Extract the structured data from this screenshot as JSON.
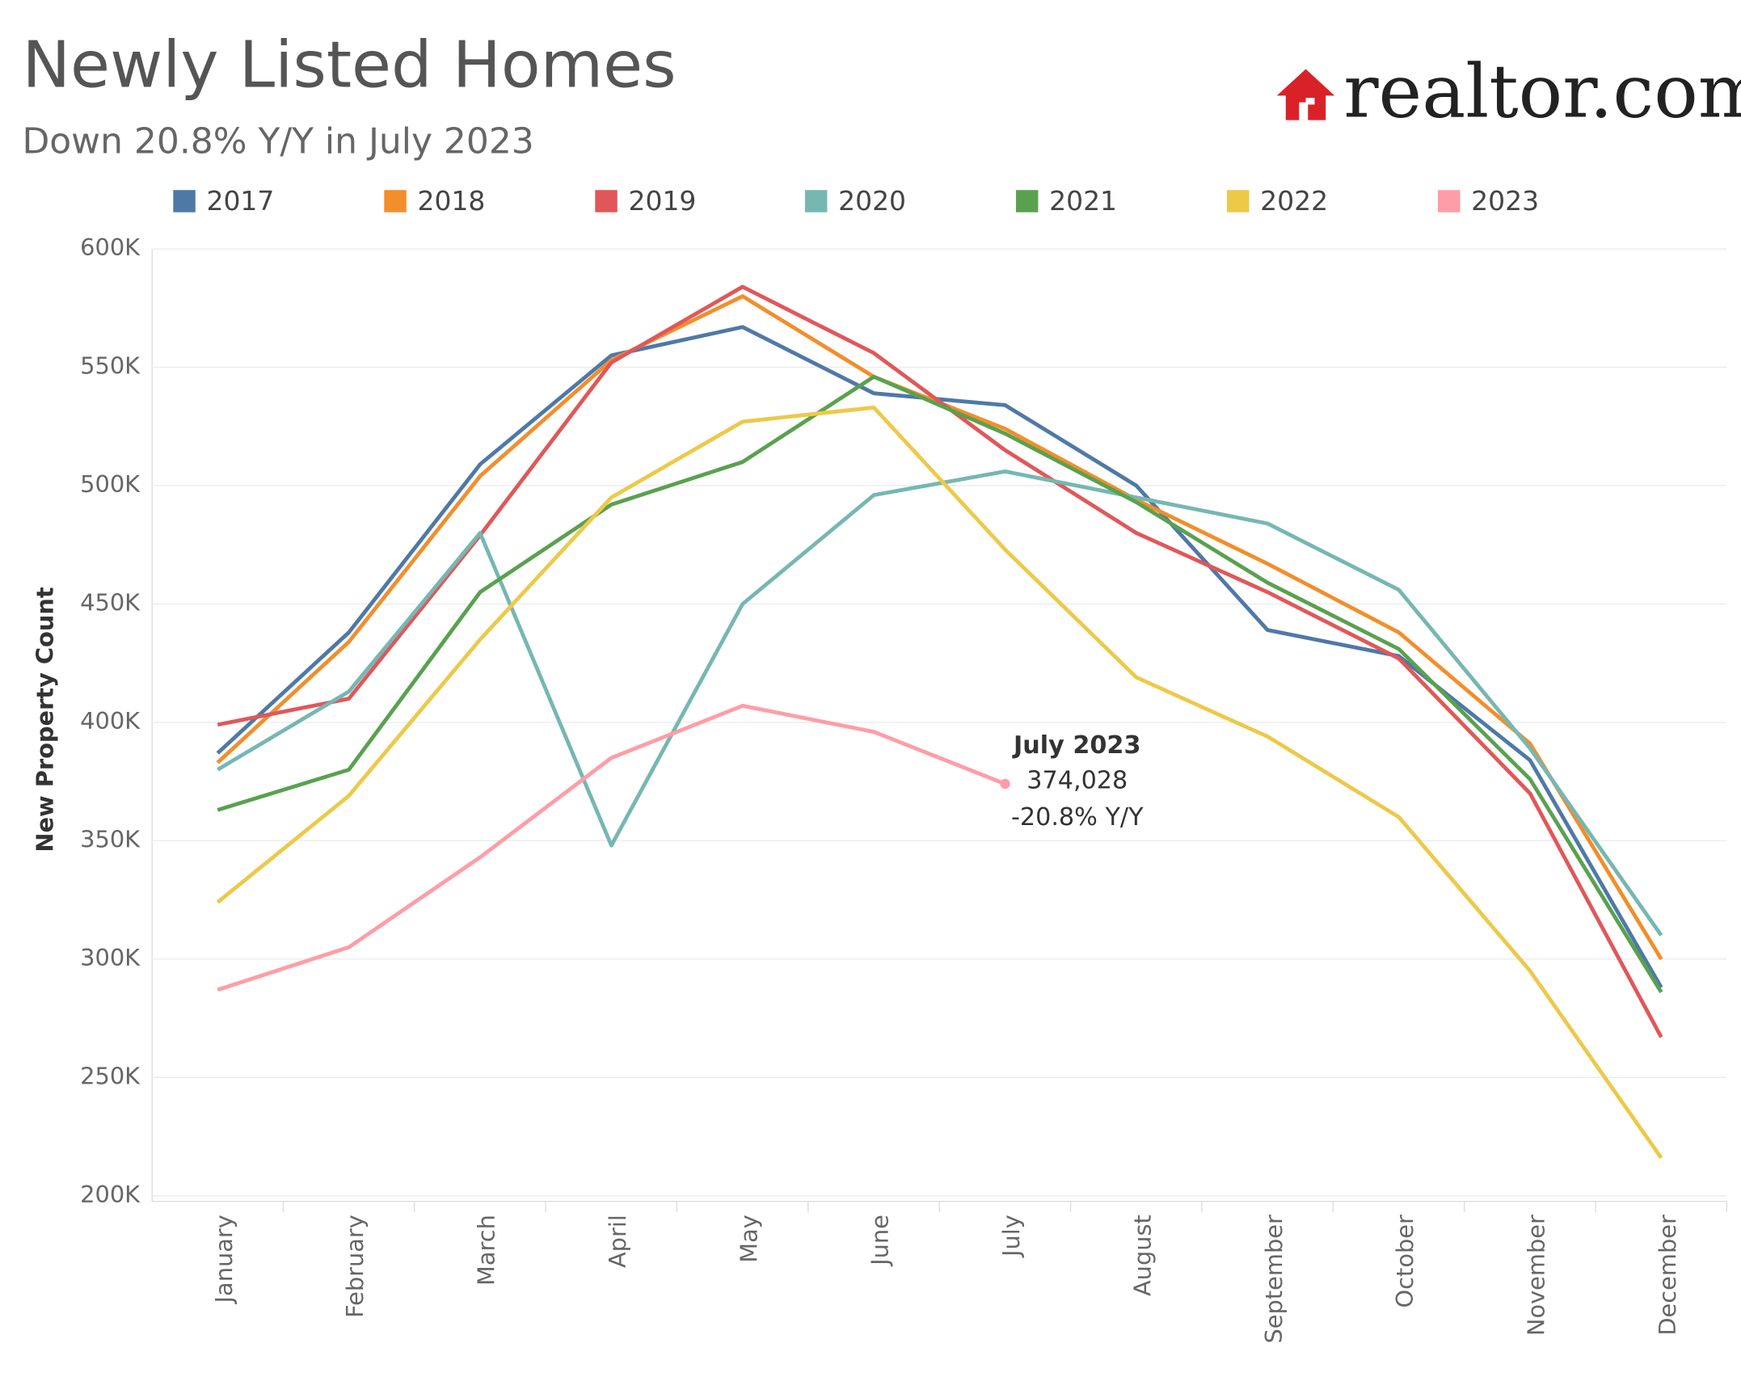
{
  "chart_data": {
    "type": "line",
    "title": "Newly Listed Homes",
    "subtitle": "Down 20.8% Y/Y in July 2023",
    "logo": "realtor.com",
    "y_label": "New Property Count",
    "categories": [
      "January",
      "February",
      "March",
      "April",
      "May",
      "June",
      "July",
      "August",
      "September",
      "October",
      "November",
      "December"
    ],
    "ylim": [
      200000,
      600000
    ],
    "yticks": [
      {
        "value": 200000,
        "label": "200K"
      },
      {
        "value": 250000,
        "label": "250K"
      },
      {
        "value": 300000,
        "label": "300K"
      },
      {
        "value": 350000,
        "label": "350K"
      },
      {
        "value": 400000,
        "label": "400K"
      },
      {
        "value": 450000,
        "label": "450K"
      },
      {
        "value": 500000,
        "label": "500K"
      },
      {
        "value": 550000,
        "label": "550K"
      },
      {
        "value": 600000,
        "label": "600K"
      }
    ],
    "grid": true,
    "series": [
      {
        "name": "2017",
        "color": "#4e79a7",
        "values": [
          387000,
          438000,
          509000,
          555000,
          567000,
          539000,
          534000,
          500000,
          439000,
          428000,
          384000,
          288000
        ]
      },
      {
        "name": "2018",
        "color": "#f28e2b",
        "values": [
          383000,
          434000,
          504000,
          553000,
          580000,
          546000,
          524000,
          494000,
          467000,
          438000,
          391000,
          300000
        ]
      },
      {
        "name": "2019",
        "color": "#e15759",
        "values": [
          399000,
          410000,
          479000,
          552000,
          584000,
          556000,
          515000,
          480000,
          455000,
          427000,
          370000,
          267000
        ]
      },
      {
        "name": "2020",
        "color": "#76b7b2",
        "values": [
          380000,
          413000,
          480000,
          348000,
          450000,
          496000,
          506000,
          495000,
          484000,
          456000,
          389000,
          310000
        ]
      },
      {
        "name": "2021",
        "color": "#59a14f",
        "values": [
          363000,
          380000,
          455000,
          492000,
          510000,
          546000,
          522000,
          493000,
          459000,
          431000,
          376000,
          286000
        ]
      },
      {
        "name": "2022",
        "color": "#edc948",
        "values": [
          324000,
          369000,
          435000,
          495000,
          527000,
          533000,
          473000,
          419000,
          394000,
          360000,
          295000,
          216000
        ]
      },
      {
        "name": "2023",
        "color": "#ff9da7",
        "values": [
          287000,
          305000,
          343000,
          385000,
          407000,
          396000,
          374028,
          null,
          null,
          null,
          null,
          null
        ],
        "value_labels": [
          null,
          null,
          null,
          null,
          null,
          null,
          "374,028",
          null,
          null,
          null,
          null,
          null
        ]
      }
    ],
    "annotation": {
      "title": "July 2023",
      "change": "-20.8% Y/Y"
    }
  }
}
